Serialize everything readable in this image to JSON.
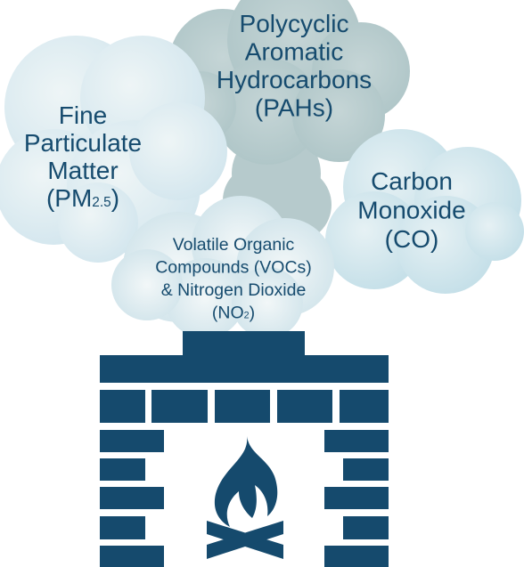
{
  "clouds": [
    {
      "lines": [
        [
          {
            "text": "Polycyclic"
          }
        ],
        [
          {
            "text": "Aromatic"
          }
        ],
        [
          {
            "text": "Hydrocarbons"
          }
        ],
        [
          {
            "text": "(PAHs)"
          }
        ]
      ]
    },
    {
      "lines": [
        [
          {
            "text": "Fine"
          }
        ],
        [
          {
            "text": "Particulate"
          }
        ],
        [
          {
            "text": "Matter"
          }
        ],
        [
          {
            "text": "(PM"
          },
          {
            "text": "2.5",
            "sub": true
          },
          {
            "text": ")"
          }
        ]
      ]
    },
    {
      "lines": [
        [
          {
            "text": "Carbon"
          }
        ],
        [
          {
            "text": "Monoxide"
          }
        ],
        [
          {
            "text": "(CO)"
          }
        ]
      ]
    },
    {
      "lines": [
        [
          {
            "text": "Volatile Organic"
          }
        ],
        [
          {
            "text": "Compounds (VOCs)"
          }
        ],
        [
          {
            "text": "& Nitrogen Dioxide"
          }
        ],
        [
          {
            "text": "(NO"
          },
          {
            "text": "2",
            "sub": true
          },
          {
            "text": ")"
          }
        ]
      ]
    }
  ]
}
